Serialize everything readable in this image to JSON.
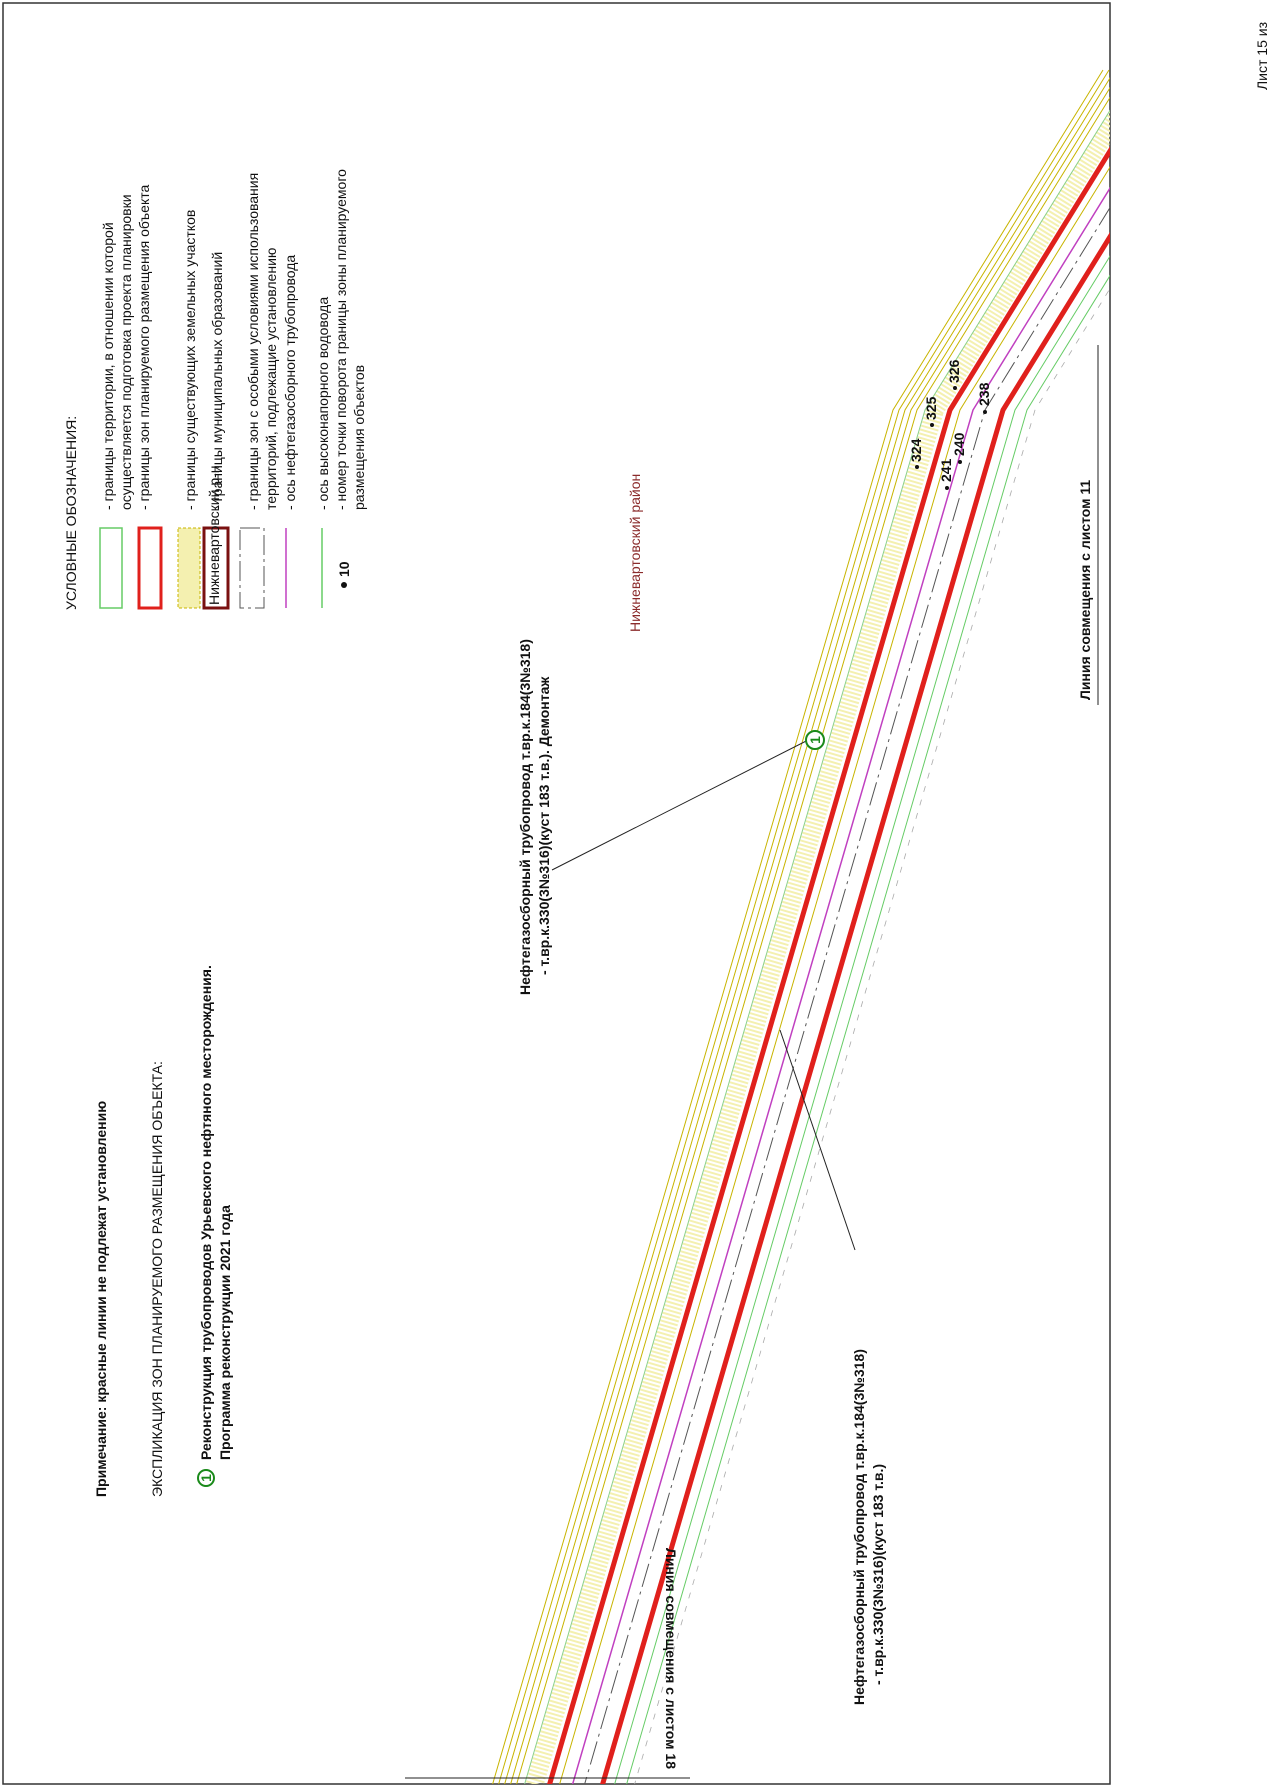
{
  "note": "Примечание: красные линии не подлежат установлению",
  "explication": {
    "title": "ЭКСПЛИКАЦИЯ ЗОН ПЛАНИРУЕМОГО РАЗМЕЩЕНИЯ ОБЪЕКТА:",
    "items": [
      {
        "number": "1",
        "lines": [
          "Реконструкция трубопроводов Урьевского нефтяного месторождения.",
          "Программа реконструкции 2021 года"
        ]
      }
    ]
  },
  "legend": {
    "title": "УСЛОВНЫЕ ОБОЗНАЧЕНИЯ:",
    "symbol_label": "Нижневартовский р-н",
    "point_example": "10",
    "items": [
      {
        "lines": [
          "- границы территории, в отношении которой",
          "осуществляется подготовка проекта планировки"
        ]
      },
      {
        "lines": [
          "- границы зон планируемого размещения объекта"
        ]
      },
      {
        "lines": [
          "- границы существующих земельных участков"
        ]
      },
      {
        "lines": [
          "- границы муниципальных образований"
        ]
      },
      {
        "lines": [
          "- границы зон с особыми условиями использования",
          "территорий, подлежащие установлению"
        ]
      },
      {
        "lines": [
          "- ось нефтегазосборного трубопровода"
        ]
      },
      {
        "lines": [
          "- ось высоконапорного водовода"
        ]
      },
      {
        "lines": [
          "- номер точки поворота границы зоны планируемого",
          "размещения объектов"
        ]
      }
    ]
  },
  "district": "Нижневартовский район",
  "match_lines": [
    "Линия совмещения с листом 11",
    "Линия совмещения с листом 18"
  ],
  "callouts": [
    {
      "lines": [
        "Нефтегазосборный трубопровод т.вр.к.184(3№318)",
        "- т.вр.к.330(3№316)(куст 183 т.в.). Демонтаж"
      ]
    },
    {
      "lines": [
        "Нефтегазосборный трубопровод т.вр.к.184(3№318)",
        "- т.вр.к.330(3№316)(куст 183 т.в.)"
      ]
    }
  ],
  "points": [
    "324",
    "325",
    "326",
    "241",
    "240",
    "238"
  ],
  "sheet": "Лист 15 из"
}
